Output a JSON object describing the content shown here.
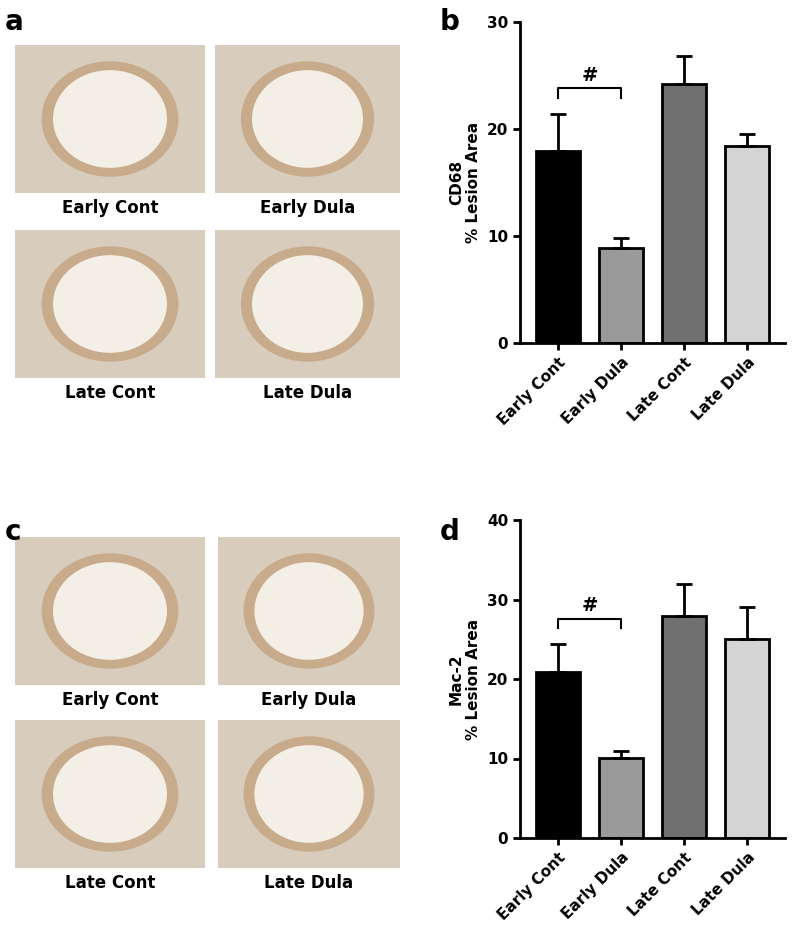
{
  "image_panels": [
    {
      "panel_label": "a",
      "captions": [
        "Early Cont",
        "Early Dula",
        "Late Cont",
        "Late Dula"
      ]
    },
    {
      "panel_label": "c",
      "captions": [
        "Early Cont",
        "Early Dula",
        "Late Cont",
        "Late Dula"
      ]
    }
  ],
  "chart_data": [
    {
      "panel_label": "b",
      "type": "bar",
      "ylabel": "CD68\n% Lesion Area",
      "categories": [
        "Early Cont",
        "Early Dula",
        "Late Cont",
        "Late Dula"
      ],
      "values": [
        17.9,
        8.9,
        24.2,
        18.4
      ],
      "errors": [
        3.5,
        0.9,
        2.6,
        1.1
      ],
      "colors": [
        "#000000",
        "#9a9a9a",
        "#707070",
        "#d4d4d4"
      ],
      "ylim": [
        0,
        30
      ],
      "yticks": [
        0,
        10,
        20,
        30
      ],
      "annotations": [
        {
          "text": "#",
          "between": [
            "Early Cont",
            "Early Dula"
          ]
        }
      ]
    },
    {
      "panel_label": "d",
      "type": "bar",
      "ylabel": "Mac-2\n% Lesion Area",
      "categories": [
        "Early Cont",
        "Early Dula",
        "Late Cont",
        "Late Dula"
      ],
      "values": [
        20.9,
        10.1,
        27.9,
        25.0
      ],
      "errors": [
        3.5,
        0.9,
        4.0,
        4.1
      ],
      "colors": [
        "#000000",
        "#9a9a9a",
        "#707070",
        "#d4d4d4"
      ],
      "ylim": [
        0,
        40
      ],
      "yticks": [
        0,
        10,
        20,
        30,
        40
      ],
      "annotations": [
        {
          "text": "#",
          "between": [
            "Early Cont",
            "Early Dula"
          ]
        }
      ]
    }
  ]
}
